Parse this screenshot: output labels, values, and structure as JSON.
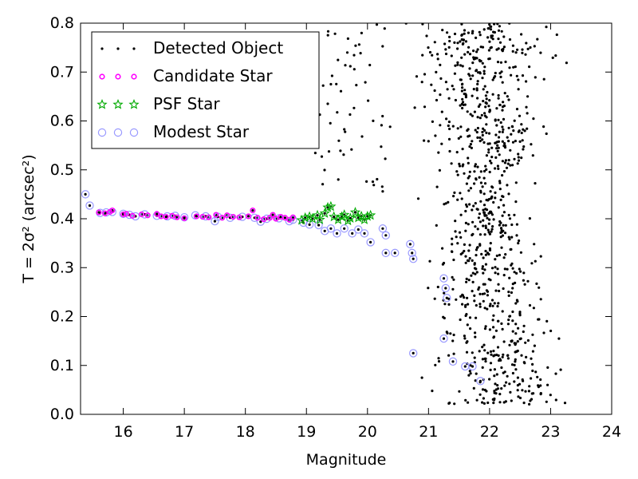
{
  "chart_data": {
    "type": "scatter",
    "xlabel": "Magnitude",
    "ylabel": "T = 2σ² (arcsec²)",
    "xlim": [
      15.3,
      24
    ],
    "ylim": [
      0.0,
      0.8
    ],
    "xticks": [
      16,
      17,
      18,
      19,
      20,
      21,
      22,
      23,
      24
    ],
    "yticks": [
      0.0,
      0.1,
      0.2,
      0.3,
      0.4,
      0.5,
      0.6,
      0.7,
      0.8
    ],
    "grid": false,
    "legend_position": "top-left",
    "legend": [
      {
        "label": "Detected Object",
        "marker": "dot",
        "color": "#000000"
      },
      {
        "label": "Candidate Star",
        "marker": "circle",
        "color": "#ff00ff"
      },
      {
        "label": "PSF Star",
        "marker": "star",
        "color": "#00aa00"
      },
      {
        "label": "Modest Star",
        "marker": "ring",
        "color": "#9999ff"
      }
    ],
    "series": [
      {
        "name": "Modest Star",
        "points": [
          [
            15.38,
            0.45
          ],
          [
            15.45,
            0.427
          ],
          [
            15.62,
            0.412
          ],
          [
            15.72,
            0.413
          ],
          [
            15.82,
            0.414
          ],
          [
            16.0,
            0.41
          ],
          [
            16.1,
            0.408
          ],
          [
            16.2,
            0.405
          ],
          [
            16.35,
            0.409
          ],
          [
            16.55,
            0.406
          ],
          [
            16.72,
            0.405
          ],
          [
            16.85,
            0.406
          ],
          [
            17.0,
            0.403
          ],
          [
            17.18,
            0.407
          ],
          [
            17.35,
            0.405
          ],
          [
            17.55,
            0.404
          ],
          [
            17.75,
            0.402
          ],
          [
            17.95,
            0.404
          ],
          [
            18.15,
            0.402
          ],
          [
            18.35,
            0.4
          ],
          [
            18.55,
            0.401
          ],
          [
            18.72,
            0.395
          ],
          [
            18.95,
            0.392
          ],
          [
            19.05,
            0.388
          ],
          [
            19.2,
            0.387
          ],
          [
            19.3,
            0.375
          ],
          [
            19.4,
            0.38
          ],
          [
            19.5,
            0.37
          ],
          [
            19.62,
            0.38
          ],
          [
            19.75,
            0.37
          ],
          [
            19.85,
            0.378
          ],
          [
            19.95,
            0.37
          ],
          [
            20.05,
            0.352
          ],
          [
            20.25,
            0.38
          ],
          [
            20.3,
            0.366
          ],
          [
            20.3,
            0.33
          ],
          [
            20.45,
            0.33
          ],
          [
            20.7,
            0.348
          ],
          [
            20.73,
            0.33
          ],
          [
            20.75,
            0.318
          ],
          [
            20.75,
            0.125
          ],
          [
            21.25,
            0.278
          ],
          [
            21.28,
            0.258
          ],
          [
            21.3,
            0.238
          ],
          [
            21.25,
            0.155
          ],
          [
            21.4,
            0.108
          ],
          [
            21.6,
            0.098
          ],
          [
            21.72,
            0.098
          ],
          [
            21.85,
            0.068
          ],
          [
            17.5,
            0.395
          ],
          [
            18.25,
            0.394
          ],
          [
            18.78,
            0.398
          ]
        ]
      },
      {
        "name": "Candidate Star",
        "points": [
          [
            15.6,
            0.413
          ],
          [
            15.7,
            0.411
          ],
          [
            15.78,
            0.414
          ],
          [
            15.82,
            0.417
          ],
          [
            16.0,
            0.409
          ],
          [
            16.05,
            0.41
          ],
          [
            16.15,
            0.406
          ],
          [
            16.3,
            0.409
          ],
          [
            16.4,
            0.407
          ],
          [
            16.55,
            0.41
          ],
          [
            16.62,
            0.405
          ],
          [
            16.7,
            0.404
          ],
          [
            16.8,
            0.406
          ],
          [
            16.88,
            0.403
          ],
          [
            17.0,
            0.401
          ],
          [
            17.2,
            0.405
          ],
          [
            17.3,
            0.404
          ],
          [
            17.4,
            0.403
          ],
          [
            17.52,
            0.408
          ],
          [
            17.62,
            0.402
          ],
          [
            17.7,
            0.407
          ],
          [
            17.8,
            0.404
          ],
          [
            17.9,
            0.403
          ],
          [
            18.05,
            0.405
          ],
          [
            18.12,
            0.417
          ],
          [
            18.2,
            0.402
          ],
          [
            18.3,
            0.399
          ],
          [
            18.4,
            0.402
          ],
          [
            18.45,
            0.408
          ],
          [
            18.5,
            0.4
          ],
          [
            18.58,
            0.404
          ],
          [
            18.65,
            0.402
          ],
          [
            18.72,
            0.398
          ],
          [
            18.78,
            0.403
          ]
        ]
      },
      {
        "name": "PSF Star",
        "points": [
          [
            18.92,
            0.397
          ],
          [
            18.98,
            0.402
          ],
          [
            19.05,
            0.404
          ],
          [
            19.1,
            0.4
          ],
          [
            19.18,
            0.407
          ],
          [
            19.22,
            0.398
          ],
          [
            19.3,
            0.411
          ],
          [
            19.35,
            0.423
          ],
          [
            19.4,
            0.425
          ],
          [
            19.45,
            0.404
          ],
          [
            19.52,
            0.398
          ],
          [
            19.58,
            0.404
          ],
          [
            19.62,
            0.408
          ],
          [
            19.68,
            0.396
          ],
          [
            19.72,
            0.401
          ],
          [
            19.8,
            0.413
          ],
          [
            19.85,
            0.402
          ],
          [
            19.9,
            0.405
          ],
          [
            19.95,
            0.398
          ],
          [
            20.0,
            0.405
          ],
          [
            20.05,
            0.407
          ]
        ]
      }
    ]
  }
}
